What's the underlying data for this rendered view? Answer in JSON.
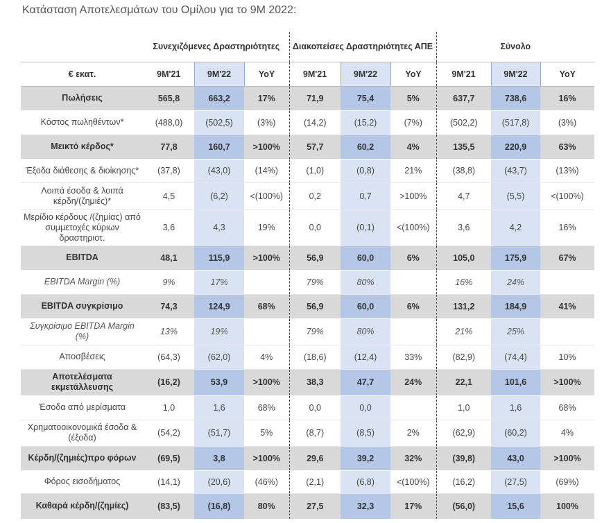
{
  "title": "Κατάσταση Αποτελεσμάτων του Ομίλου για το 9Μ 2022:",
  "table": {
    "unit_label": "€ εκατ.",
    "groups": [
      "Συνεχιζόμενες Δραστηριότητες",
      "Διακοπείσες Δραστηριότητες ΑΠΕ",
      "Σύνολο"
    ],
    "periods": [
      "9Μ'21",
      "9Μ'22",
      "YoY",
      "9Μ'21",
      "9Μ'22",
      "YoY",
      "9Μ'21",
      "9Μ'22",
      "YoY"
    ],
    "rows": [
      {
        "label": "Πωλήσεις",
        "style": "bold shaded",
        "values": [
          "565,8",
          "663,2",
          "17%",
          "71,9",
          "75,4",
          "5%",
          "637,7",
          "738,6",
          "16%"
        ]
      },
      {
        "label": "Κόστος πωληθέντων*",
        "style": "",
        "values": [
          "(488,0)",
          "(502,5)",
          "(3%)",
          "(14,2)",
          "(15,2)",
          "(7%)",
          "(502,2)",
          "(517,8)",
          "(3%)"
        ]
      },
      {
        "label": "Μεικτό κέρδος*",
        "style": "bold shaded",
        "values": [
          "77,8",
          "160,7",
          ">100%",
          "57,7",
          "60,2",
          "4%",
          "135,5",
          "220,9",
          "63%"
        ]
      },
      {
        "label": "Έξοδα διάθεσης & διοίκησης*",
        "style": "",
        "values": [
          "(37,8)",
          "(43,0)",
          "(14%)",
          "(1,0)",
          "(0,8)",
          "21%",
          "(38,8)",
          "(43,7)",
          "(13%)"
        ]
      },
      {
        "label": "Λοιπά έσοδα & λοιπά κέρδη/(ζημιές)*",
        "style": "",
        "values": [
          "4,5",
          "(6,2)",
          "<(100%)",
          "0,2",
          "0,7",
          ">100%",
          "4,7",
          "(5,5)",
          "<(100%)"
        ]
      },
      {
        "label": "Μερίδιο κέρδους /(ζημίας) από συμμετοχές κύριων δραστηριοτ.",
        "style": "",
        "values": [
          "3,6",
          "4,3",
          "19%",
          "0,0",
          "(0,1)",
          "<(100%)",
          "3,6",
          "4,2",
          "16%"
        ]
      },
      {
        "label": "EBITDA",
        "style": "bold shaded",
        "values": [
          "48,1",
          "115,9",
          ">100%",
          "56,9",
          "60,0",
          "6%",
          "105,0",
          "175,9",
          "67%"
        ]
      },
      {
        "label": "EBITDA Margin (%)",
        "style": "italic",
        "values": [
          "9%",
          "17%",
          "",
          "79%",
          "80%",
          "",
          "16%",
          "24%",
          ""
        ]
      },
      {
        "label": "EBITDA συγκρίσιμο",
        "style": "bold shaded",
        "values": [
          "74,3",
          "124,9",
          "68%",
          "56,9",
          "60,0",
          "6%",
          "131,2",
          "184,9",
          "41%"
        ]
      },
      {
        "label": "Συγκρίσιμο EBITDA Margin (%)",
        "style": "italic",
        "values": [
          "13%",
          "19%",
          "",
          "79%",
          "80%",
          "",
          "21%",
          "25%",
          ""
        ]
      },
      {
        "label": "Αποσβέσεις",
        "style": "",
        "values": [
          "(64,3)",
          "(62,0)",
          "4%",
          "(18,6)",
          "(12,4)",
          "33%",
          "(82,9)",
          "(74,4)",
          "10%"
        ]
      },
      {
        "label": "Αποτελέσματα εκμετάλλευσης",
        "style": "bold shaded",
        "values": [
          "(16,2)",
          "53,9",
          ">100%",
          "38,3",
          "47,7",
          "24%",
          "22,1",
          "101,6",
          ">100%"
        ]
      },
      {
        "label": "Έσοδα από μερίσματα",
        "style": "",
        "values": [
          "1,0",
          "1,6",
          "68%",
          "0,0",
          "0,0",
          "",
          "1,0",
          "1,6",
          "68%"
        ]
      },
      {
        "label": "Χρηματοοικονομικά έσοδα & (έξοδα)",
        "style": "",
        "values": [
          "(54,2)",
          "(51,7)",
          "5%",
          "(8,7)",
          "(8,5)",
          "2%",
          "(62,9)",
          "(60,2)",
          "4%"
        ]
      },
      {
        "label": "Κέρδη/(ζημιές)προ φόρων",
        "style": "bold shaded",
        "values": [
          "(69,5)",
          "3,8",
          ">100%",
          "29,6",
          "39,2",
          "32%",
          "(39,8)",
          "43,0",
          ">100%"
        ]
      },
      {
        "label": "Φόρος εισοδήματος",
        "style": "",
        "values": [
          "(14,1)",
          "(20,6)",
          "(46%)",
          "(2,1)",
          "(6,8)",
          "<(100%)",
          "(16,2)",
          "(27,5)",
          "(69%)"
        ]
      },
      {
        "label": "Καθαρά κέρδη/(ζημίες)",
        "style": "bold shaded",
        "values": [
          "(83,5)",
          "(16,8)",
          "80%",
          "27,5",
          "32,3",
          "17%",
          "(56,0)",
          "15,6",
          "100%"
        ]
      }
    ]
  },
  "colors": {
    "shaded_row": "#d9d9d9",
    "highlight_col": "#dae3f3",
    "highlight_col_shaded": "#b4c7e7"
  }
}
